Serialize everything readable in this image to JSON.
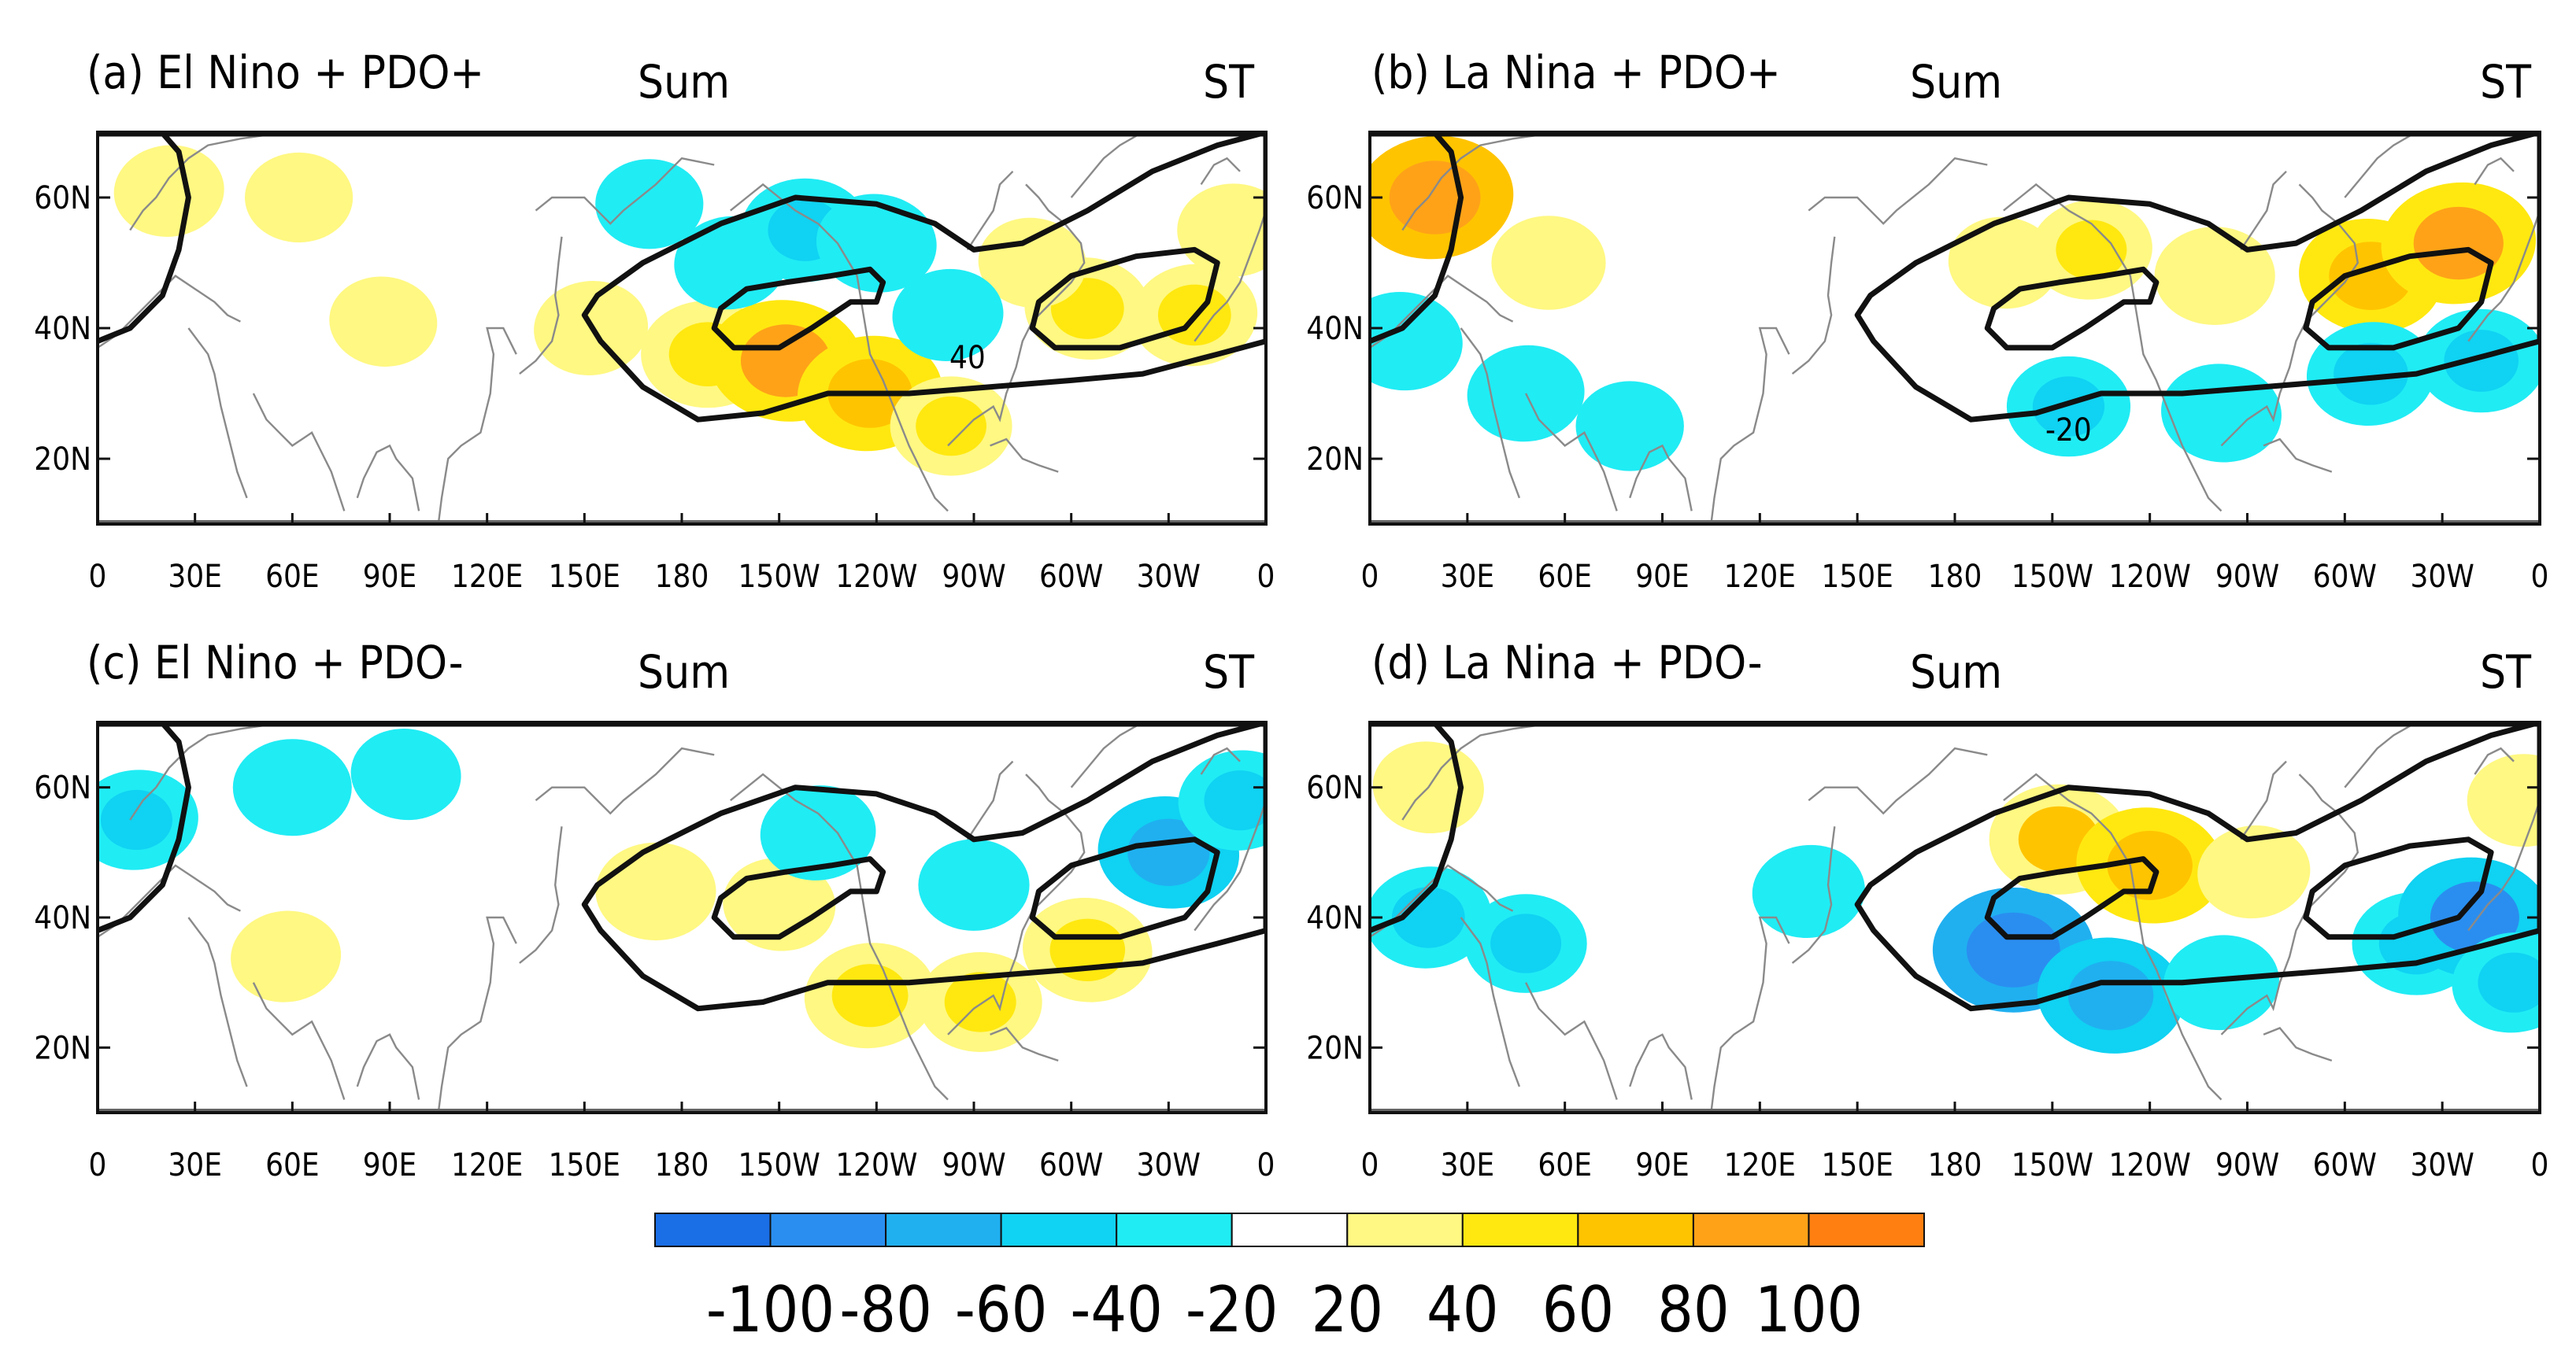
{
  "figure": {
    "panels": [
      {
        "id": "a",
        "title": "(a) El Nino + PDO+",
        "season": "Sum",
        "region": "ST",
        "contour_label": "40",
        "anomalies": [
          {
            "lon": 22,
            "lat": 61,
            "value": 25
          },
          {
            "lon": 62,
            "lat": 60,
            "value": 22
          },
          {
            "lon": 88,
            "lat": 41,
            "value": 22
          },
          {
            "lon": 152,
            "lat": 40,
            "value": 30
          },
          {
            "lon": 188,
            "lat": 36,
            "value": 55
          },
          {
            "lon": 212,
            "lat": 35,
            "value": 82
          },
          {
            "lon": 238,
            "lat": 30,
            "value": 70
          },
          {
            "lon": 263,
            "lat": 25,
            "value": 40
          },
          {
            "lon": 305,
            "lat": 43,
            "value": 45
          },
          {
            "lon": 338,
            "lat": 42,
            "value": 45
          },
          {
            "lon": 350,
            "lat": 55,
            "value": 28
          },
          {
            "lon": 288,
            "lat": 50,
            "value": 22
          },
          {
            "lon": 195,
            "lat": 50,
            "value": -28
          },
          {
            "lon": 218,
            "lat": 55,
            "value": -48
          },
          {
            "lon": 240,
            "lat": 53,
            "value": -38
          },
          {
            "lon": 262,
            "lat": 42,
            "value": -26
          },
          {
            "lon": 170,
            "lat": 59,
            "value": -22
          }
        ]
      },
      {
        "id": "b",
        "title": "(b) La Nina + PDO+",
        "season": "Sum",
        "region": "ST",
        "contour_label": "-20",
        "anomalies": [
          {
            "lon": 20,
            "lat": 60,
            "value": 85
          },
          {
            "lon": 55,
            "lat": 50,
            "value": 30
          },
          {
            "lon": 10,
            "lat": 38,
            "value": -38
          },
          {
            "lon": 48,
            "lat": 30,
            "value": -34
          },
          {
            "lon": 80,
            "lat": 25,
            "value": -22
          },
          {
            "lon": 195,
            "lat": 50,
            "value": 25
          },
          {
            "lon": 222,
            "lat": 52,
            "value": 40
          },
          {
            "lon": 260,
            "lat": 48,
            "value": 38
          },
          {
            "lon": 308,
            "lat": 48,
            "value": 68
          },
          {
            "lon": 335,
            "lat": 53,
            "value": 82
          },
          {
            "lon": 215,
            "lat": 28,
            "value": -42
          },
          {
            "lon": 262,
            "lat": 27,
            "value": -38
          },
          {
            "lon": 308,
            "lat": 33,
            "value": -48
          },
          {
            "lon": 342,
            "lat": 35,
            "value": -48
          }
        ]
      },
      {
        "id": "c",
        "title": "(c) El Nino + PDO-",
        "season": "Sum",
        "region": "ST",
        "contour_label": "",
        "anomalies": [
          {
            "lon": 12,
            "lat": 55,
            "value": -42
          },
          {
            "lon": 60,
            "lat": 60,
            "value": -36
          },
          {
            "lon": 95,
            "lat": 62,
            "value": -25
          },
          {
            "lon": 58,
            "lat": 34,
            "value": 25
          },
          {
            "lon": 172,
            "lat": 44,
            "value": 38
          },
          {
            "lon": 210,
            "lat": 42,
            "value": 28
          },
          {
            "lon": 238,
            "lat": 28,
            "value": 52
          },
          {
            "lon": 272,
            "lat": 27,
            "value": 42
          },
          {
            "lon": 305,
            "lat": 35,
            "value": 50
          },
          {
            "lon": 222,
            "lat": 53,
            "value": -32
          },
          {
            "lon": 270,
            "lat": 45,
            "value": -26
          },
          {
            "lon": 330,
            "lat": 50,
            "value": -65
          },
          {
            "lon": 352,
            "lat": 58,
            "value": -42
          }
        ]
      },
      {
        "id": "d",
        "title": "(d) La Nina + PDO-",
        "season": "Sum",
        "region": "ST",
        "contour_label": "",
        "anomalies": [
          {
            "lon": 18,
            "lat": 40,
            "value": -45
          },
          {
            "lon": 48,
            "lat": 36,
            "value": -40
          },
          {
            "lon": 18,
            "lat": 60,
            "value": 26
          },
          {
            "lon": 135,
            "lat": 44,
            "value": -28
          },
          {
            "lon": 198,
            "lat": 35,
            "value": -90
          },
          {
            "lon": 228,
            "lat": 28,
            "value": -72
          },
          {
            "lon": 262,
            "lat": 30,
            "value": -32
          },
          {
            "lon": 212,
            "lat": 52,
            "value": 62
          },
          {
            "lon": 240,
            "lat": 48,
            "value": 72
          },
          {
            "lon": 272,
            "lat": 47,
            "value": 28
          },
          {
            "lon": 322,
            "lat": 36,
            "value": -48
          },
          {
            "lon": 340,
            "lat": 40,
            "value": -80
          },
          {
            "lon": 352,
            "lat": 30,
            "value": -42
          },
          {
            "lon": 355,
            "lat": 58,
            "value": 28
          }
        ]
      }
    ],
    "y_ticks": [
      {
        "lat": 60,
        "label": "60N"
      },
      {
        "lat": 40,
        "label": "40N"
      },
      {
        "lat": 20,
        "label": "20N"
      }
    ],
    "x_ticks": [
      {
        "lon": 0,
        "label": "0"
      },
      {
        "lon": 30,
        "label": "30E"
      },
      {
        "lon": 60,
        "label": "60E"
      },
      {
        "lon": 90,
        "label": "90E"
      },
      {
        "lon": 120,
        "label": "120E"
      },
      {
        "lon": 150,
        "label": "150E"
      },
      {
        "lon": 180,
        "label": "180"
      },
      {
        "lon": 210,
        "label": "150W"
      },
      {
        "lon": 240,
        "label": "120W"
      },
      {
        "lon": 270,
        "label": "90W"
      },
      {
        "lon": 300,
        "label": "60W"
      },
      {
        "lon": 330,
        "label": "30W"
      },
      {
        "lon": 360,
        "label": "0"
      }
    ],
    "lat_range": [
      10,
      70
    ],
    "lon_range": [
      0,
      360
    ],
    "colorbar": {
      "levels": [
        "-100",
        "-80",
        "-60",
        "-40",
        "-20",
        "20",
        "40",
        "60",
        "80",
        "100"
      ],
      "colors": [
        "#1a6ee6",
        "#2a8ef0",
        "#20b0f0",
        "#10d2f2",
        "#20ecf4",
        "#ffffff",
        "#fff882",
        "#ffe810",
        "#ffc400",
        "#ffa218",
        "#ff8010"
      ]
    },
    "colors": {
      "coast": "#8a8a8a",
      "contour": "#111111",
      "frame": "#111111"
    }
  }
}
